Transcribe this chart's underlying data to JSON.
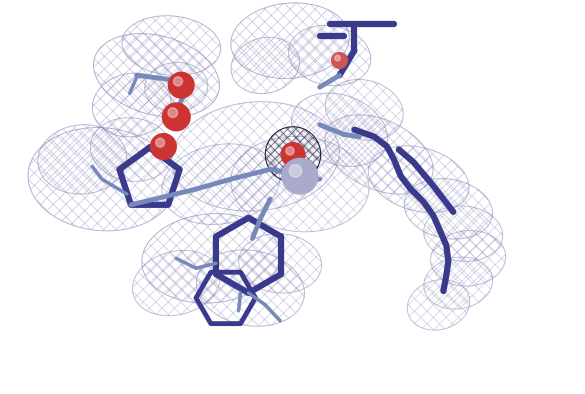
{
  "background_color": "#ffffff",
  "mesh_color": "#8888bb",
  "mesh_color2": "#333355",
  "stick_dark": "#3a3a8c",
  "stick_medium": "#7788bb",
  "stick_light": "#9999cc",
  "sphere_red": "#cc3333",
  "sphere_blue_light": "#aaaacc",
  "figsize": [
    5.85,
    3.94
  ],
  "dpi": 100
}
